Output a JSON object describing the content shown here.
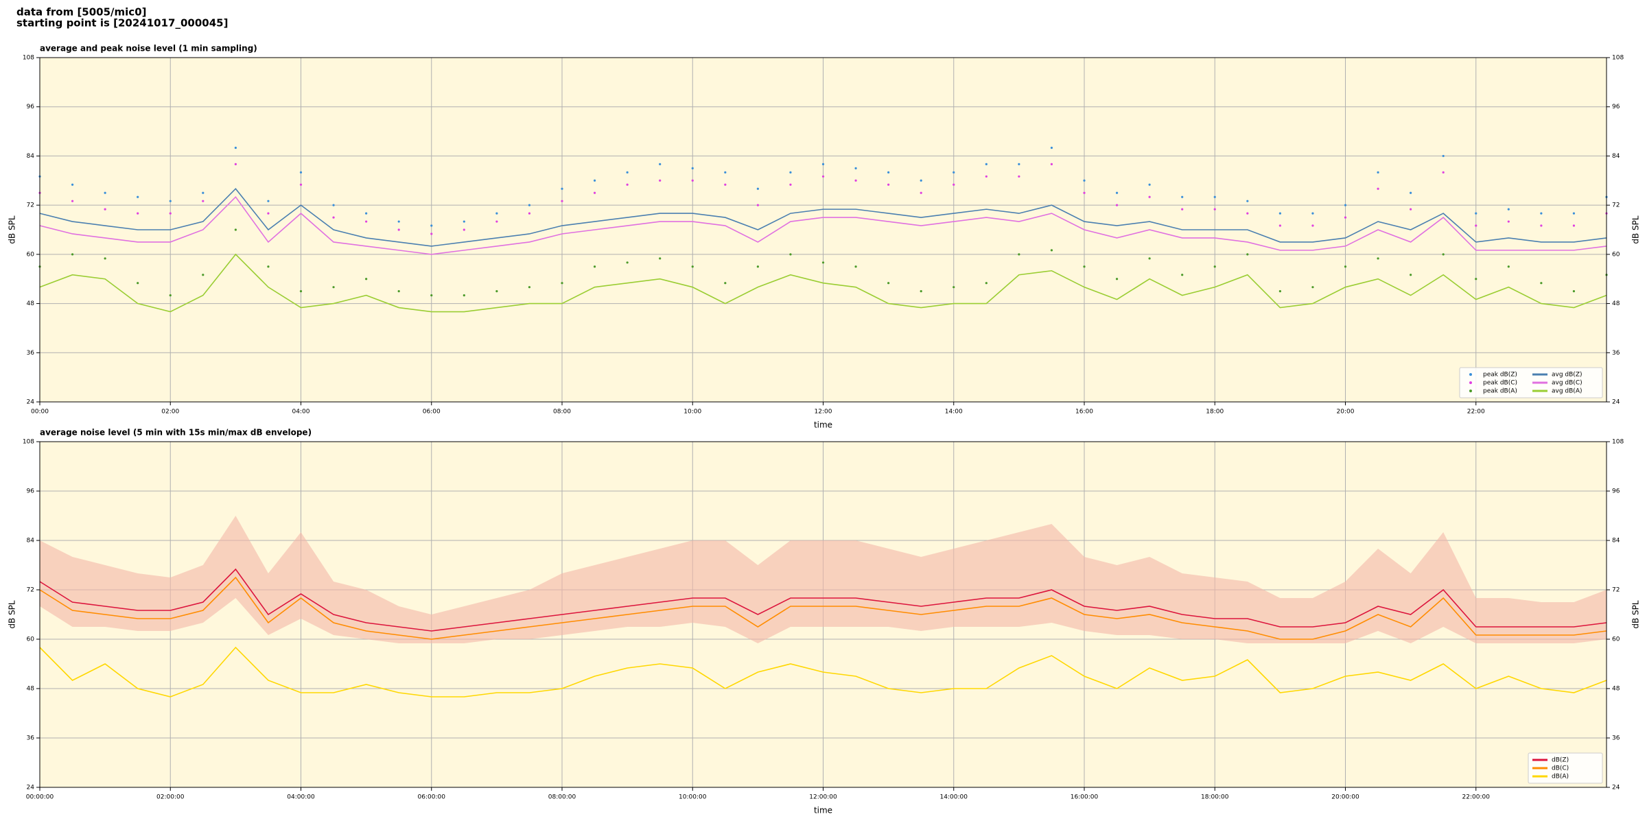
{
  "header": {
    "line1": "data from [5005/mic0]",
    "line2": "starting point is [20241017_000045]"
  },
  "chart_data": [
    {
      "type": "line",
      "title": "average and peak noise level (1 min sampling)",
      "xlabel": "time",
      "ylabel": "dB SPL",
      "xlim": [
        0,
        24
      ],
      "ylim": [
        24,
        108
      ],
      "yticks": [
        24,
        36,
        48,
        60,
        72,
        84,
        96,
        108
      ],
      "xticks": [
        {
          "value": 0,
          "label": "00:00"
        },
        {
          "value": 2,
          "label": "02:00"
        },
        {
          "value": 4,
          "label": "04:00"
        },
        {
          "value": 6,
          "label": "06:00"
        },
        {
          "value": 8,
          "label": "08:00"
        },
        {
          "value": 10,
          "label": "10:00"
        },
        {
          "value": 12,
          "label": "12:00"
        },
        {
          "value": 14,
          "label": "14:00"
        },
        {
          "value": 16,
          "label": "16:00"
        },
        {
          "value": 18,
          "label": "18:00"
        },
        {
          "value": 20,
          "label": "20:00"
        },
        {
          "value": 22,
          "label": "22:00"
        }
      ],
      "grid": true,
      "legend": "lower right",
      "legend_columns": 2,
      "background": "#fff8dc",
      "x": [
        0,
        0.5,
        1,
        1.5,
        2,
        2.5,
        3,
        3.5,
        4,
        4.5,
        5,
        5.5,
        6,
        6.5,
        7,
        7.5,
        8,
        8.5,
        9,
        9.5,
        10,
        10.5,
        11,
        11.5,
        12,
        12.5,
        13,
        13.5,
        14,
        14.5,
        15,
        15.5,
        16,
        16.5,
        17,
        17.5,
        18,
        18.5,
        19,
        19.5,
        20,
        20.5,
        21,
        21.5,
        22,
        22.5,
        23,
        23.5,
        24
      ],
      "series": [
        {
          "name": "peak dB(Z)",
          "marker": "dot",
          "color": "#3a8fd9",
          "values": [
            79,
            77,
            75,
            74,
            73,
            75,
            86,
            73,
            80,
            72,
            70,
            68,
            67,
            68,
            70,
            72,
            76,
            78,
            80,
            82,
            81,
            80,
            76,
            80,
            82,
            81,
            80,
            78,
            80,
            82,
            82,
            86,
            78,
            75,
            77,
            74,
            74,
            73,
            70,
            70,
            72,
            80,
            75,
            84,
            70,
            71,
            70,
            70,
            74
          ]
        },
        {
          "name": "peak dB(C)",
          "marker": "dot",
          "color": "#e040e0",
          "values": [
            75,
            73,
            71,
            70,
            70,
            73,
            82,
            70,
            77,
            69,
            68,
            66,
            65,
            66,
            68,
            70,
            73,
            75,
            77,
            78,
            78,
            77,
            72,
            77,
            79,
            78,
            77,
            75,
            77,
            79,
            79,
            82,
            75,
            72,
            74,
            71,
            71,
            70,
            67,
            67,
            69,
            76,
            71,
            80,
            67,
            68,
            67,
            67,
            70
          ]
        },
        {
          "name": "peak dB(A)",
          "marker": "dot",
          "color": "#4c9a2a",
          "values": [
            57,
            60,
            59,
            53,
            50,
            55,
            66,
            57,
            51,
            52,
            54,
            51,
            50,
            50,
            51,
            52,
            53,
            57,
            58,
            59,
            57,
            53,
            57,
            60,
            58,
            57,
            53,
            51,
            52,
            53,
            60,
            61,
            57,
            54,
            59,
            55,
            57,
            60,
            51,
            52,
            57,
            59,
            55,
            60,
            54,
            57,
            53,
            51,
            55
          ]
        },
        {
          "name": "avg dB(Z)",
          "marker": "line",
          "color": "#4a7fb0",
          "values": [
            70,
            68,
            67,
            66,
            66,
            68,
            76,
            66,
            72,
            66,
            64,
            63,
            62,
            63,
            64,
            65,
            67,
            68,
            69,
            70,
            70,
            69,
            66,
            70,
            71,
            71,
            70,
            69,
            70,
            71,
            70,
            72,
            68,
            67,
            68,
            66,
            66,
            66,
            63,
            63,
            64,
            68,
            66,
            70,
            63,
            64,
            63,
            63,
            64
          ]
        },
        {
          "name": "avg dB(C)",
          "marker": "line",
          "color": "#e070e0",
          "values": [
            67,
            65,
            64,
            63,
            63,
            66,
            74,
            63,
            70,
            63,
            62,
            61,
            60,
            61,
            62,
            63,
            65,
            66,
            67,
            68,
            68,
            67,
            63,
            68,
            69,
            69,
            68,
            67,
            68,
            69,
            68,
            70,
            66,
            64,
            66,
            64,
            64,
            63,
            61,
            61,
            62,
            66,
            63,
            69,
            61,
            61,
            61,
            61,
            62
          ]
        },
        {
          "name": "avg dB(A)",
          "marker": "line",
          "color": "#9acd32",
          "values": [
            52,
            55,
            54,
            48,
            46,
            50,
            60,
            52,
            47,
            48,
            50,
            47,
            46,
            46,
            47,
            48,
            48,
            52,
            53,
            54,
            52,
            48,
            52,
            55,
            53,
            52,
            48,
            47,
            48,
            48,
            55,
            56,
            52,
            49,
            54,
            50,
            52,
            55,
            47,
            48,
            52,
            54,
            50,
            55,
            49,
            52,
            48,
            47,
            50
          ]
        }
      ]
    },
    {
      "type": "line",
      "title": "average noise level (5 min with 15s min/max dB envelope)",
      "xlabel": "time",
      "ylabel": "dB SPL",
      "xlim": [
        0,
        24
      ],
      "ylim": [
        24,
        108
      ],
      "yticks": [
        24,
        36,
        48,
        60,
        72,
        84,
        96,
        108
      ],
      "xticks": [
        {
          "value": 0,
          "label": "00:00:00"
        },
        {
          "value": 2,
          "label": "02:00:00"
        },
        {
          "value": 4,
          "label": "04:00:00"
        },
        {
          "value": 6,
          "label": "06:00:00"
        },
        {
          "value": 8,
          "label": "08:00:00"
        },
        {
          "value": 10,
          "label": "10:00:00"
        },
        {
          "value": 12,
          "label": "12:00:00"
        },
        {
          "value": 14,
          "label": "14:00:00"
        },
        {
          "value": 16,
          "label": "16:00:00"
        },
        {
          "value": 18,
          "label": "18:00:00"
        },
        {
          "value": 20,
          "label": "20:00:00"
        },
        {
          "value": 22,
          "label": "22:00:00"
        }
      ],
      "grid": true,
      "legend": "lower right",
      "legend_columns": 1,
      "background": "#fff8dc",
      "x": [
        0,
        0.5,
        1,
        1.5,
        2,
        2.5,
        3,
        3.5,
        4,
        4.5,
        5,
        5.5,
        6,
        6.5,
        7,
        7.5,
        8,
        8.5,
        9,
        9.5,
        10,
        10.5,
        11,
        11.5,
        12,
        12.5,
        13,
        13.5,
        14,
        14.5,
        15,
        15.5,
        16,
        16.5,
        17,
        17.5,
        18,
        18.5,
        19,
        19.5,
        20,
        20.5,
        21,
        21.5,
        22,
        22.5,
        23,
        23.5,
        24
      ],
      "envelope": {
        "color": "#f4b8a8",
        "max": [
          84,
          80,
          78,
          76,
          75,
          78,
          90,
          76,
          86,
          74,
          72,
          68,
          66,
          68,
          70,
          72,
          76,
          78,
          80,
          82,
          84,
          84,
          78,
          84,
          84,
          84,
          82,
          80,
          82,
          84,
          86,
          88,
          80,
          78,
          80,
          76,
          75,
          74,
          70,
          70,
          74,
          82,
          76,
          86,
          70,
          70,
          69,
          69,
          72
        ],
        "min": [
          68,
          63,
          63,
          62,
          62,
          64,
          70,
          61,
          65,
          61,
          60,
          59,
          59,
          59,
          60,
          60,
          61,
          62,
          63,
          63,
          64,
          63,
          59,
          63,
          63,
          63,
          63,
          62,
          63,
          63,
          63,
          64,
          62,
          61,
          61,
          60,
          60,
          59,
          59,
          59,
          59,
          62,
          59,
          63,
          59,
          59,
          59,
          59,
          60
        ]
      },
      "series": [
        {
          "name": "dB(Z)",
          "marker": "line",
          "color": "#dc143c",
          "values": [
            74,
            69,
            68,
            67,
            67,
            69,
            77,
            66,
            71,
            66,
            64,
            63,
            62,
            63,
            64,
            65,
            66,
            67,
            68,
            69,
            70,
            70,
            66,
            70,
            70,
            70,
            69,
            68,
            69,
            70,
            70,
            72,
            68,
            67,
            68,
            66,
            65,
            65,
            63,
            63,
            64,
            68,
            66,
            72,
            63,
            63,
            63,
            63,
            64
          ]
        },
        {
          "name": "dB(C)",
          "marker": "line",
          "color": "#ff8c00",
          "values": [
            72,
            67,
            66,
            65,
            65,
            67,
            75,
            64,
            70,
            64,
            62,
            61,
            60,
            61,
            62,
            63,
            64,
            65,
            66,
            67,
            68,
            68,
            63,
            68,
            68,
            68,
            67,
            66,
            67,
            68,
            68,
            70,
            66,
            65,
            66,
            64,
            63,
            62,
            60,
            60,
            62,
            66,
            63,
            70,
            61,
            61,
            61,
            61,
            62
          ]
        },
        {
          "name": "dB(A)",
          "marker": "line",
          "color": "#ffd700",
          "values": [
            58,
            50,
            54,
            48,
            46,
            49,
            58,
            50,
            47,
            47,
            49,
            47,
            46,
            46,
            47,
            47,
            48,
            51,
            53,
            54,
            53,
            48,
            52,
            54,
            52,
            51,
            48,
            47,
            48,
            48,
            53,
            56,
            51,
            48,
            53,
            50,
            51,
            55,
            47,
            48,
            51,
            52,
            50,
            54,
            48,
            51,
            48,
            47,
            50
          ]
        }
      ]
    }
  ]
}
